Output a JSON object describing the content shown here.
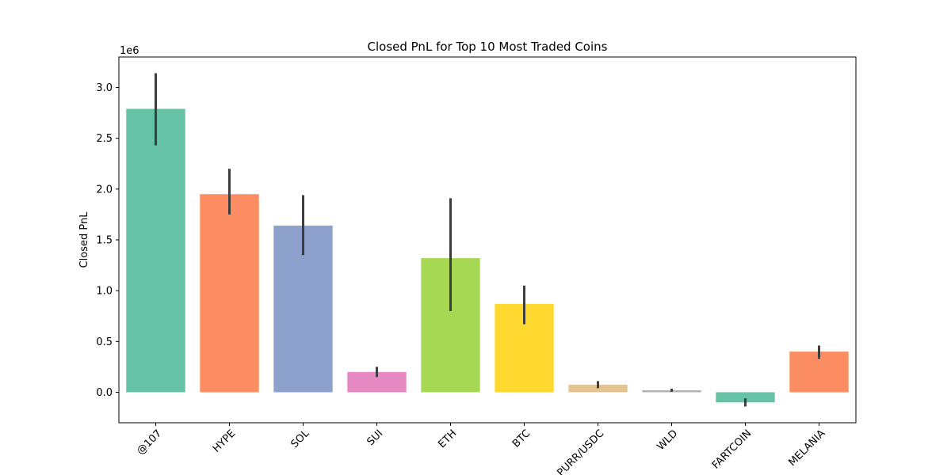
{
  "chart_data": {
    "type": "bar",
    "title": "Closed PnL for Top 10 Most Traded Coins",
    "xlabel": "",
    "ylabel": "Closed PnL",
    "y_multiplier_label": "1e6",
    "ylim": [
      -0.3,
      3.3
    ],
    "y_ticks": [
      0.0,
      0.5,
      1.0,
      1.5,
      2.0,
      2.5,
      3.0
    ],
    "y_tick_labels": [
      "0.0",
      "0.5",
      "1.0",
      "1.5",
      "2.0",
      "2.5",
      "3.0"
    ],
    "categories": [
      "@107",
      "HYPE",
      "SOL",
      "SUI",
      "ETH",
      "BTC",
      "PURR/USDC",
      "WLD",
      "FARTCOIN",
      "MELANIA"
    ],
    "values": [
      2.79,
      1.95,
      1.64,
      0.2,
      1.32,
      0.87,
      0.075,
      0.02,
      -0.1,
      0.4
    ],
    "error_low": [
      2.43,
      1.75,
      1.35,
      0.15,
      0.8,
      0.67,
      0.04,
      0.005,
      -0.14,
      0.33
    ],
    "error_high": [
      3.14,
      2.2,
      1.94,
      0.25,
      1.91,
      1.05,
      0.11,
      0.035,
      -0.06,
      0.46
    ],
    "colors": [
      "#66c2a5",
      "#fc8d62",
      "#8da0cb",
      "#e78ac3",
      "#a6d854",
      "#ffd92f",
      "#e5c494",
      "#b3b3b3",
      "#66c2a5",
      "#fc8d62"
    ],
    "error_color": "#3d3d3d",
    "grid": false,
    "legend": "none",
    "x_tick_rotation": 45
  }
}
